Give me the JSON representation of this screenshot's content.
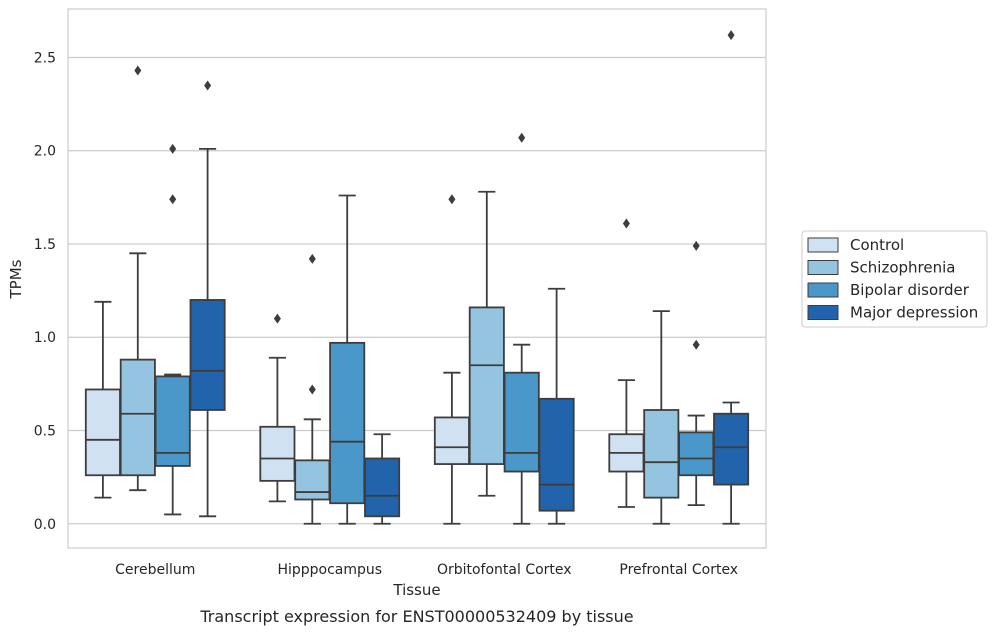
{
  "chart_data": {
    "type": "boxplot",
    "caption": "Transcript expression for ENST00000532409 by tissue",
    "xlabel": "Tissue",
    "ylabel": "TPMs",
    "ylim": [
      -0.13,
      2.76
    ],
    "yticks": [
      "0.0",
      "0.5",
      "1.0",
      "1.5",
      "2.0",
      "2.5"
    ],
    "grid": "horizontal",
    "legend_position": "right",
    "categories": [
      "Cerebellum",
      "Hipppocampus",
      "Orbitofontal Cortex",
      "Prefrontal Cortex"
    ],
    "series": [
      {
        "name": "Control",
        "color": "#d0e1f2"
      },
      {
        "name": "Schizophrenia",
        "color": "#94c4df"
      },
      {
        "name": "Bipolar disorder",
        "color": "#4a98c9"
      },
      {
        "name": "Major depression",
        "color": "#2164ab"
      }
    ],
    "boxes": [
      [
        {
          "whislo": 0.14,
          "q1": 0.26,
          "med": 0.45,
          "q3": 0.72,
          "whishi": 1.19,
          "fliers": []
        },
        {
          "whislo": 0.18,
          "q1": 0.26,
          "med": 0.59,
          "q3": 0.88,
          "whishi": 1.45,
          "fliers": [
            2.43
          ]
        },
        {
          "whislo": 0.05,
          "q1": 0.31,
          "med": 0.38,
          "q3": 0.79,
          "whishi": 0.8,
          "fliers": [
            1.74,
            2.01
          ]
        },
        {
          "whislo": 0.04,
          "q1": 0.61,
          "med": 0.82,
          "q3": 1.2,
          "whishi": 2.01,
          "fliers": [
            2.35
          ]
        }
      ],
      [
        {
          "whislo": 0.12,
          "q1": 0.23,
          "med": 0.35,
          "q3": 0.52,
          "whishi": 0.89,
          "fliers": [
            1.1
          ]
        },
        {
          "whislo": 0.0,
          "q1": 0.13,
          "med": 0.17,
          "q3": 0.34,
          "whishi": 0.56,
          "fliers": [
            0.72,
            1.42
          ]
        },
        {
          "whislo": 0.0,
          "q1": 0.11,
          "med": 0.44,
          "q3": 0.97,
          "whishi": 1.76,
          "fliers": []
        },
        {
          "whislo": 0.0,
          "q1": 0.04,
          "med": 0.15,
          "q3": 0.35,
          "whishi": 0.48,
          "fliers": []
        }
      ],
      [
        {
          "whislo": 0.0,
          "q1": 0.32,
          "med": 0.41,
          "q3": 0.57,
          "whishi": 0.81,
          "fliers": [
            1.74
          ]
        },
        {
          "whislo": 0.15,
          "q1": 0.32,
          "med": 0.85,
          "q3": 1.16,
          "whishi": 1.78,
          "fliers": []
        },
        {
          "whislo": 0.0,
          "q1": 0.28,
          "med": 0.38,
          "q3": 0.81,
          "whishi": 0.96,
          "fliers": [
            2.07
          ]
        },
        {
          "whislo": 0.0,
          "q1": 0.07,
          "med": 0.21,
          "q3": 0.67,
          "whishi": 1.26,
          "fliers": []
        }
      ],
      [
        {
          "whislo": 0.09,
          "q1": 0.28,
          "med": 0.38,
          "q3": 0.48,
          "whishi": 0.77,
          "fliers": [
            1.61
          ]
        },
        {
          "whislo": 0.0,
          "q1": 0.14,
          "med": 0.33,
          "q3": 0.61,
          "whishi": 1.14,
          "fliers": []
        },
        {
          "whislo": 0.1,
          "q1": 0.26,
          "med": 0.35,
          "q3": 0.49,
          "whishi": 0.58,
          "fliers": [
            0.96,
            1.49
          ]
        },
        {
          "whislo": 0.0,
          "q1": 0.21,
          "med": 0.41,
          "q3": 0.59,
          "whishi": 0.65,
          "fliers": [
            2.62
          ]
        }
      ]
    ]
  }
}
